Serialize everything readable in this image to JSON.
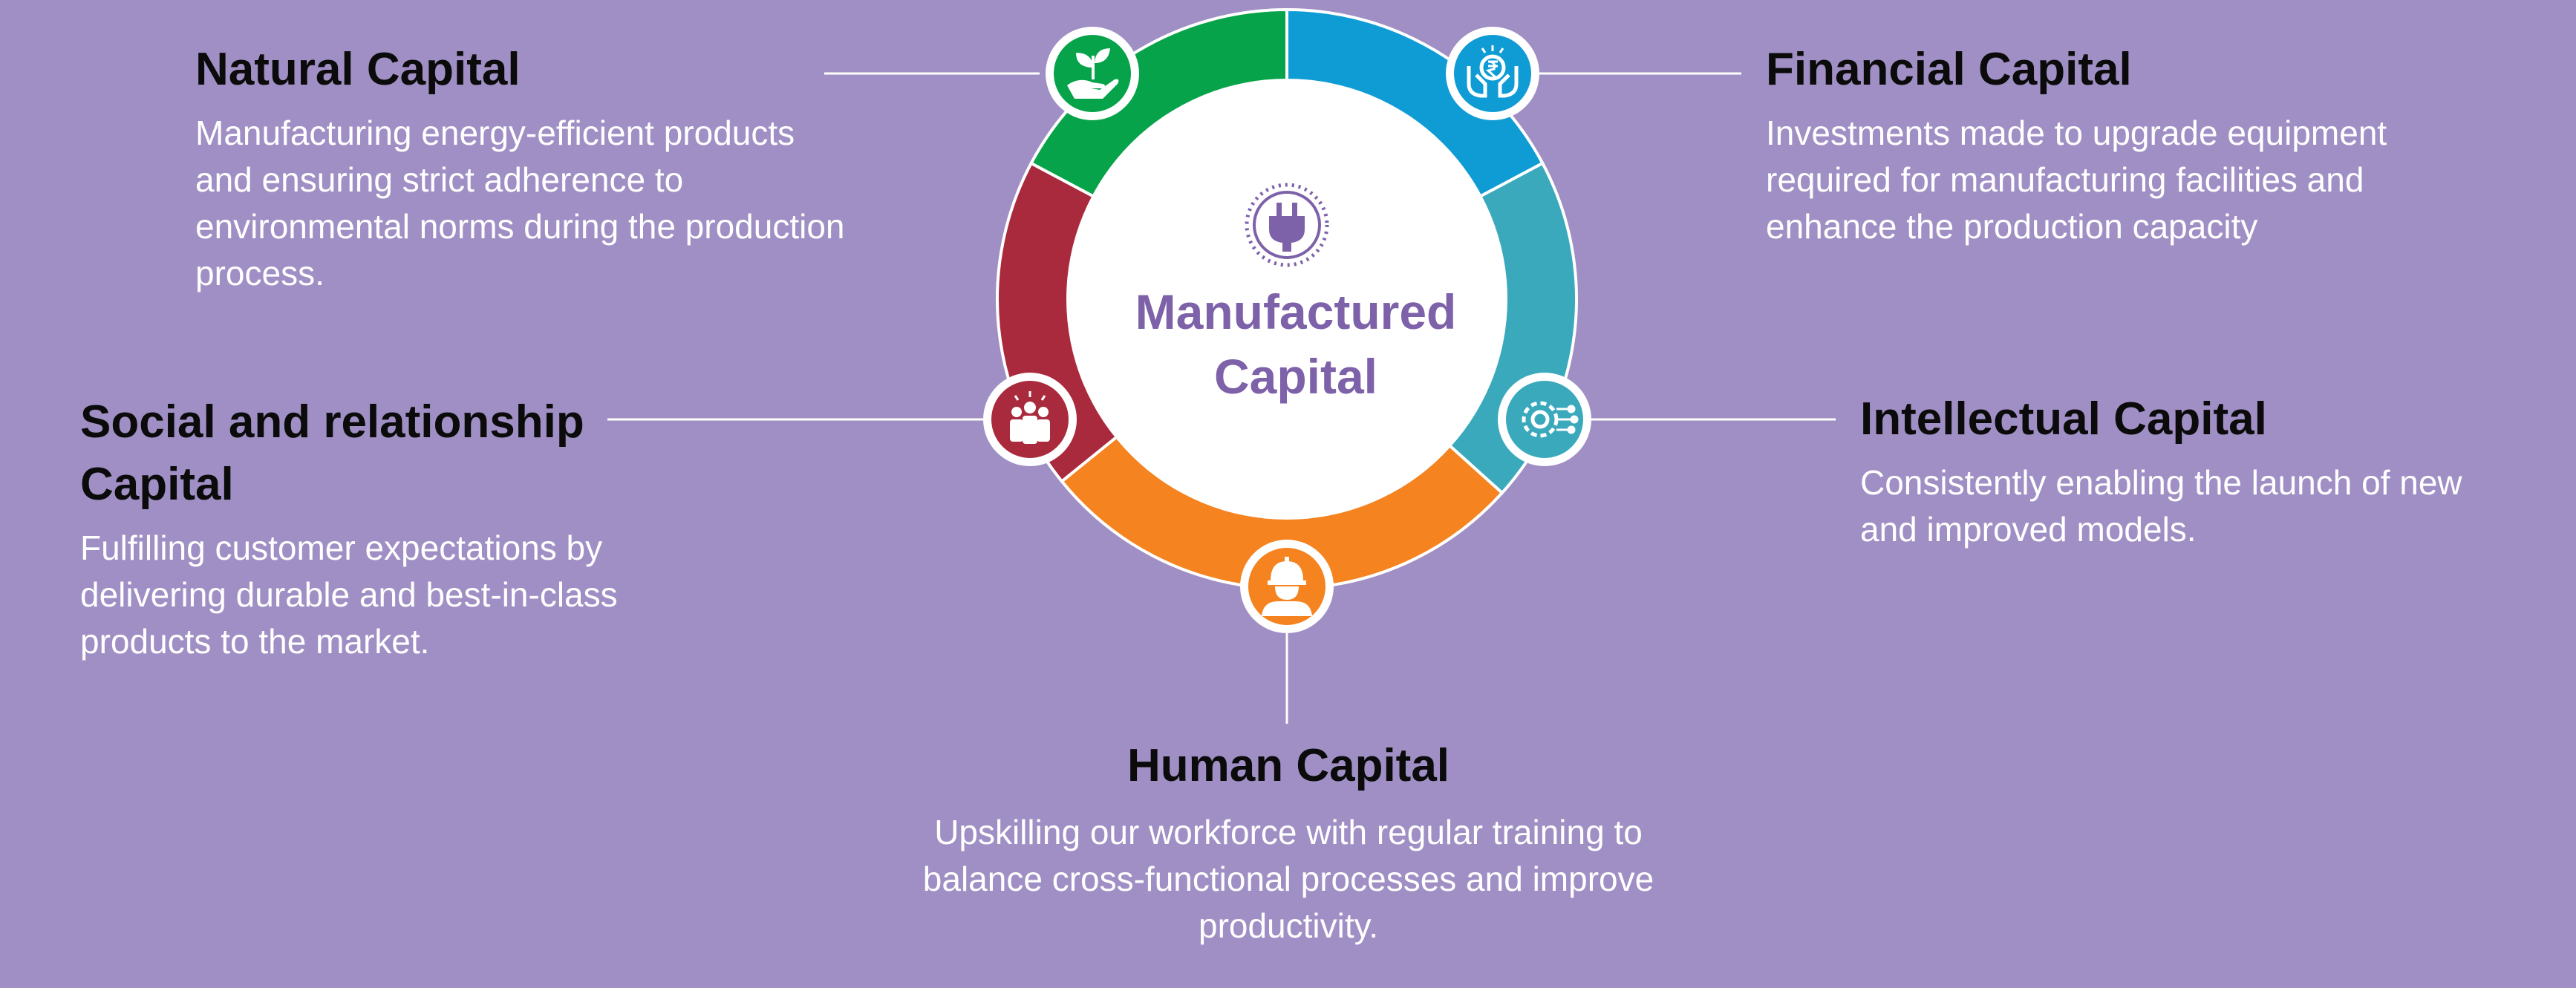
{
  "center": {
    "line1": "Manufactured",
    "line2": "Capital",
    "icon": "plug-icon"
  },
  "colors": {
    "background": "#a08fc4",
    "natural": "#07a34a",
    "financial": "#0f9cd5",
    "intellectual": "#3aa9bc",
    "human": "#f48320",
    "social": "#a92a3c",
    "center_text": "#7d61a9"
  },
  "natural": {
    "title": "Natural Capital",
    "desc": "Manufacturing energy-efficient products and ensuring strict adherence to environmental norms during the production process.",
    "icon": "plant-in-hand-icon"
  },
  "financial": {
    "title": "Financial Capital",
    "desc": "Investments made to upgrade equipment required for manufacturing facilities and enhance the production capacity",
    "icon": "rupee-in-hands-icon"
  },
  "social": {
    "title": "Social and relationship Capital",
    "desc": "Fulfilling customer expectations by delivering durable and best-in-class products to the market.",
    "icon": "people-group-icon"
  },
  "intellectual": {
    "title": "Intellectual Capital",
    "desc": "Consistently enabling the launch of new and improved models.",
    "icon": "gear-circuit-icon"
  },
  "human": {
    "title": "Human Capital",
    "desc": "Upskilling our workforce with regular training to balance cross-functional processes and improve productivity.",
    "icon": "worker-helmet-icon"
  }
}
